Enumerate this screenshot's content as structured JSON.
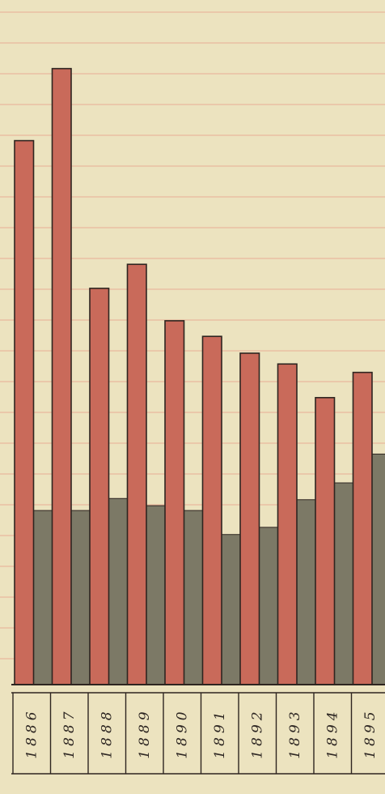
{
  "colors": {
    "paper": "#ece3bf",
    "grid_line": "#e8a58d",
    "series_red": "#c96a5a",
    "series_gray": "#7c7966",
    "outline": "#2e2520",
    "label_text": "#2d2622"
  },
  "chart_data": {
    "type": "bar",
    "title": "",
    "xlabel": "",
    "ylabel": "",
    "categories": [
      "1886",
      "1887",
      "1888",
      "1889",
      "1890",
      "1891",
      "1892",
      "1893",
      "1894",
      "1895"
    ],
    "series": [
      {
        "color": "red",
        "values": [
          45.3,
          51.3,
          33.0,
          35.0,
          30.3,
          29.0,
          27.6,
          26.7,
          23.9,
          26.0
        ]
      },
      {
        "color": "gray",
        "values": [
          14.5,
          14.5,
          15.5,
          14.9,
          14.5,
          12.5,
          13.1,
          15.4,
          16.8,
          19.2
        ]
      }
    ],
    "ylim": [
      0,
      56
    ],
    "grid": true,
    "legend": "none"
  }
}
